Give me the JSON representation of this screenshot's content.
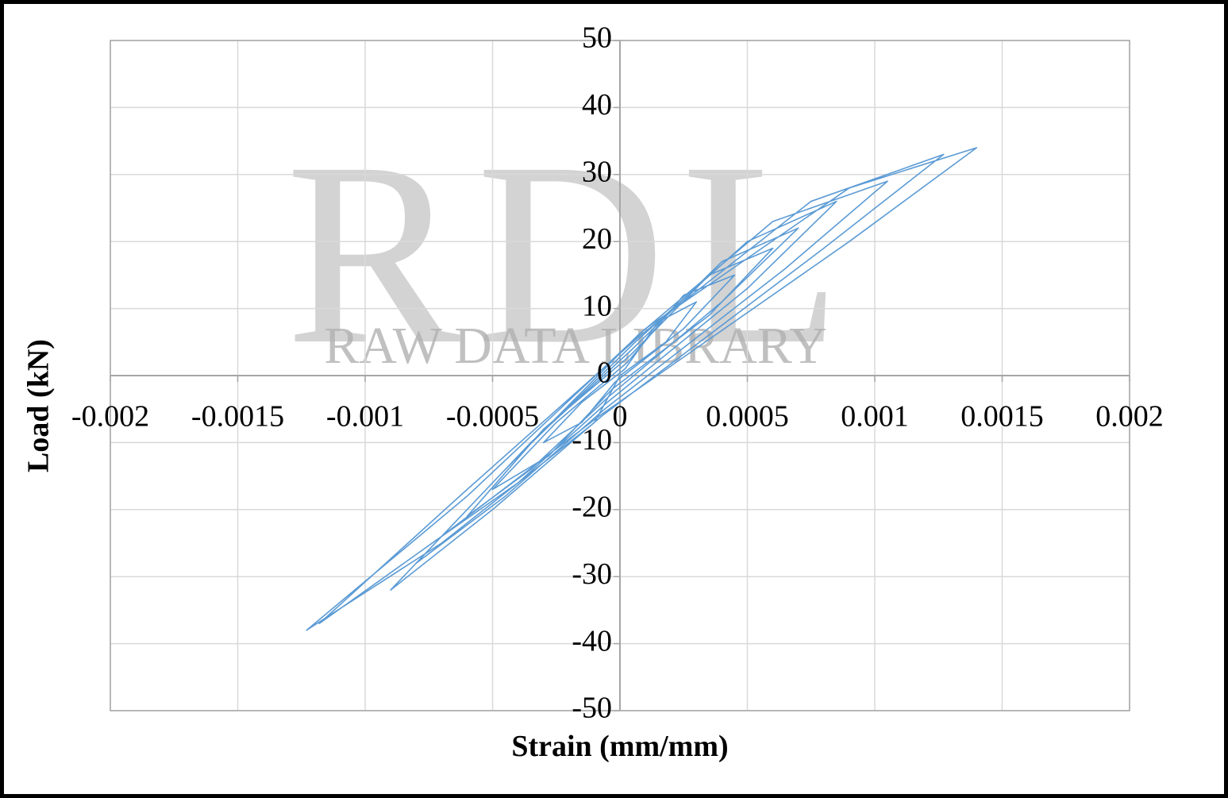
{
  "chart_data": {
    "type": "line",
    "x_label": "Strain (mm/mm)",
    "y_label": "Load (kN)",
    "color": "#5b9bd5",
    "grid": true,
    "xlim": [
      -0.002,
      0.002
    ],
    "xticks": [
      -0.002,
      -0.0015,
      -0.001,
      -0.0005,
      0,
      0.0005,
      0.001,
      0.0015,
      0.002
    ],
    "ylim": [
      -50,
      50
    ],
    "yticks": [
      50,
      40,
      30,
      20,
      10,
      0,
      -10,
      -20,
      -30,
      -40,
      -50
    ],
    "x": [
      0,
      0.00018,
      0.0003,
      0.00015,
      2e-05,
      -0.00015,
      -0.0003,
      -0.00015,
      -2e-05,
      0.00025,
      0.00045,
      0.00025,
      3e-05,
      -0.00025,
      -0.0005,
      -0.00028,
      -3e-05,
      0.00035,
      0.0006,
      0.00035,
      4e-05,
      -0.0003,
      -0.0006,
      -0.00035,
      -4e-05,
      0.0004,
      0.0007,
      0.0004,
      5e-05,
      -0.00035,
      -0.0007,
      -0.0004,
      -5e-05,
      0.0005,
      0.00085,
      0.0005,
      6e-05,
      -0.0004,
      -0.0008,
      -0.00045,
      -6e-05,
      0.00065,
      0.00105,
      0.0006,
      7e-05,
      -0.00045,
      -0.0009,
      -0.0005,
      -7e-05,
      0.0008,
      0.00127,
      0.00075,
      8e-05,
      -0.0006,
      -0.00118,
      -0.0007,
      -8e-05,
      0.0009,
      0.0014,
      0.0009,
      0.0001,
      -0.0006,
      -0.00123,
      -0.0007,
      -0.0001,
      0
    ],
    "values": [
      0,
      5,
      11,
      8,
      1,
      -4,
      -10,
      -7,
      -1,
      7,
      15,
      12,
      2,
      -7,
      -17,
      -12,
      -2,
      9,
      19,
      15,
      3,
      -8,
      -21,
      -14,
      -3,
      11,
      22,
      17,
      4,
      -10,
      -24,
      -16,
      -4,
      13,
      26,
      20,
      5,
      -12,
      -28,
      -18,
      -5,
      16,
      29,
      23,
      6,
      -14,
      -32,
      -20,
      -6,
      19,
      33,
      26,
      6,
      -17,
      -37,
      -24,
      -6,
      20,
      34,
      28,
      7,
      -18,
      -38,
      -25,
      -7,
      0
    ]
  },
  "watermark": {
    "logo": "RDL",
    "text": "RAW DATA LIBRARY"
  }
}
